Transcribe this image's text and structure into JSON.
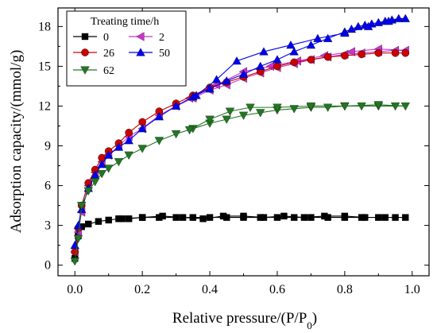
{
  "chart_data": {
    "type": "line",
    "title": "",
    "xlabel": "Relative pressure/(P/P",
    "xlabel_sub": "0",
    "xlabel_close": ")",
    "ylabel": "Adsorption capacity/(mmol/g)",
    "xlim": [
      -0.05,
      1.05
    ],
    "ylim": [
      -0.8,
      19.4
    ],
    "xticks": [
      0.0,
      0.2,
      0.4,
      0.6,
      0.8,
      1.0
    ],
    "xtick_labels": [
      "0.0",
      "0.2",
      "0.4",
      "0.6",
      "0.8",
      "1.0"
    ],
    "yticks": [
      0,
      3,
      6,
      9,
      12,
      15,
      18
    ],
    "ytick_labels": [
      "0",
      "3",
      "6",
      "9",
      "12",
      "15",
      "18"
    ],
    "grid": false,
    "legend": {
      "title": "Treating time/h",
      "placement": "top-left"
    },
    "series": [
      {
        "name": "0",
        "color": "#000000",
        "marker": "square",
        "x": [
          0.0,
          0.01,
          0.02,
          0.04,
          0.07,
          0.1,
          0.13,
          0.16,
          0.2,
          0.25,
          0.3,
          0.35,
          0.4,
          0.45,
          0.5,
          0.55,
          0.6,
          0.65,
          0.7,
          0.75,
          0.8,
          0.85,
          0.9,
          0.95,
          0.98,
          0.92,
          0.86,
          0.8,
          0.74,
          0.68,
          0.62,
          0.56,
          0.5,
          0.44,
          0.38,
          0.32,
          0.26,
          0.2,
          0.14
        ],
        "y": [
          0.5,
          2.2,
          2.9,
          3.1,
          3.3,
          3.4,
          3.5,
          3.5,
          3.6,
          3.6,
          3.6,
          3.6,
          3.6,
          3.6,
          3.6,
          3.6,
          3.6,
          3.6,
          3.6,
          3.6,
          3.6,
          3.6,
          3.6,
          3.6,
          3.6,
          3.6,
          3.6,
          3.7,
          3.7,
          3.6,
          3.7,
          3.6,
          3.7,
          3.7,
          3.5,
          3.6,
          3.7,
          3.6,
          3.5
        ]
      },
      {
        "name": "2",
        "color": "#cc33cc",
        "marker": "triangle-left",
        "x": [
          0.0,
          0.01,
          0.02,
          0.04,
          0.06,
          0.08,
          0.1,
          0.13,
          0.16,
          0.2,
          0.25,
          0.3,
          0.35,
          0.4,
          0.45,
          0.5,
          0.55,
          0.6,
          0.65,
          0.7,
          0.75,
          0.8,
          0.85,
          0.9,
          0.95,
          0.98,
          0.9,
          0.82,
          0.74,
          0.66,
          0.58,
          0.5,
          0.42,
          0.34
        ],
        "y": [
          1.0,
          2.5,
          4.0,
          6.0,
          7.0,
          7.8,
          8.3,
          9.0,
          9.7,
          10.3,
          11.3,
          12.0,
          12.6,
          13.2,
          13.6,
          14.1,
          14.5,
          14.9,
          15.2,
          15.5,
          15.7,
          15.9,
          16.0,
          16.1,
          16.2,
          16.2,
          16.3,
          16.1,
          15.8,
          15.4,
          15.0,
          14.6,
          13.6,
          12.6
        ]
      },
      {
        "name": "26",
        "color": "#cc0000",
        "marker": "circle",
        "x": [
          0.0,
          0.01,
          0.02,
          0.04,
          0.06,
          0.08,
          0.1,
          0.13,
          0.16,
          0.2,
          0.25,
          0.3,
          0.35,
          0.4,
          0.45,
          0.5,
          0.55,
          0.6,
          0.65,
          0.7,
          0.75,
          0.8,
          0.85,
          0.9,
          0.95,
          0.98
        ],
        "y": [
          1.0,
          2.8,
          4.5,
          6.2,
          7.2,
          8.1,
          8.6,
          9.2,
          10.0,
          10.8,
          11.6,
          12.2,
          12.8,
          13.4,
          13.8,
          14.2,
          14.6,
          15.0,
          15.3,
          15.5,
          15.7,
          15.8,
          15.9,
          16.0,
          16.0,
          16.0
        ]
      },
      {
        "name": "50",
        "color": "#0000ee",
        "marker": "triangle-up",
        "x": [
          0.0,
          0.01,
          0.02,
          0.04,
          0.06,
          0.08,
          0.1,
          0.13,
          0.16,
          0.2,
          0.25,
          0.3,
          0.35,
          0.4,
          0.45,
          0.5,
          0.55,
          0.6,
          0.65,
          0.7,
          0.75,
          0.8,
          0.82,
          0.84,
          0.86,
          0.88,
          0.9,
          0.92,
          0.94,
          0.96,
          0.98,
          0.93,
          0.87,
          0.8,
          0.72,
          0.64,
          0.56,
          0.48,
          0.42,
          0.36
        ],
        "y": [
          1.5,
          3.0,
          4.2,
          5.8,
          6.8,
          7.6,
          8.3,
          8.9,
          9.4,
          10.3,
          11.2,
          12.0,
          12.7,
          13.3,
          13.9,
          14.4,
          15.0,
          15.5,
          16.1,
          16.6,
          17.1,
          17.6,
          17.8,
          18.0,
          18.1,
          18.2,
          18.3,
          18.4,
          18.5,
          18.6,
          18.6,
          18.4,
          18.0,
          17.5,
          17.1,
          16.6,
          16.1,
          15.4,
          14.0,
          12.8
        ]
      },
      {
        "name": "62",
        "color": "#227722",
        "marker": "triangle-down",
        "x": [
          0.0,
          0.01,
          0.02,
          0.04,
          0.06,
          0.08,
          0.1,
          0.13,
          0.16,
          0.2,
          0.25,
          0.3,
          0.35,
          0.4,
          0.45,
          0.5,
          0.55,
          0.6,
          0.65,
          0.7,
          0.75,
          0.8,
          0.85,
          0.9,
          0.95,
          0.98,
          0.9,
          0.8,
          0.7,
          0.6,
          0.52,
          0.46,
          0.4,
          0.34
        ],
        "y": [
          0.3,
          2.0,
          4.5,
          5.6,
          6.3,
          6.9,
          7.3,
          7.8,
          8.3,
          8.8,
          9.4,
          9.9,
          10.3,
          10.7,
          11.0,
          11.3,
          11.5,
          11.7,
          11.8,
          11.9,
          11.9,
          12.0,
          12.0,
          12.0,
          12.0,
          12.0,
          12.1,
          12.0,
          12.0,
          11.9,
          11.9,
          11.6,
          11.0,
          10.2
        ]
      }
    ]
  }
}
